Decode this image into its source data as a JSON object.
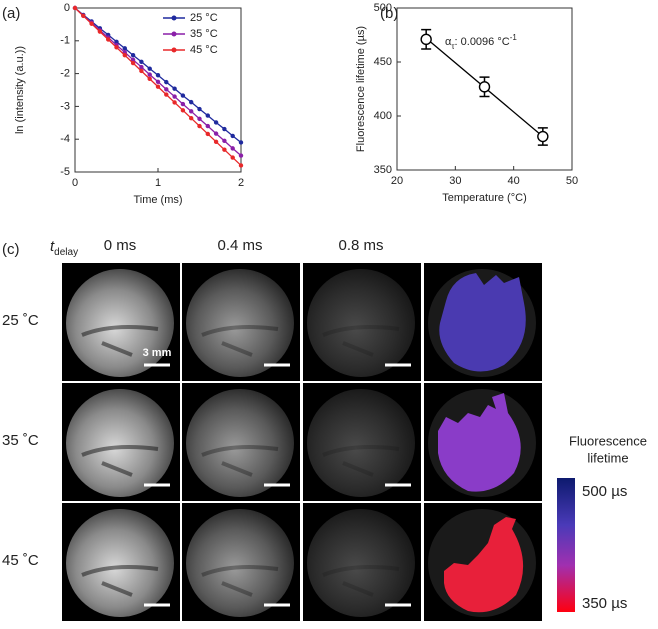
{
  "chart_data": [
    {
      "type": "line",
      "panel_label": "(a)",
      "x_label": "Time (ms)",
      "y_label": "ln (intensity (a.u.))",
      "x": [
        0,
        0.1,
        0.2,
        0.3,
        0.4,
        0.5,
        0.6,
        0.7,
        0.8,
        0.9,
        1,
        1.1,
        1.2,
        1.3,
        1.4,
        1.5,
        1.6,
        1.7,
        1.8,
        1.9,
        2
      ],
      "series": [
        {
          "name": "25 °C",
          "color": "#1f2a9e",
          "values": [
            0,
            -0.21,
            -0.41,
            -0.62,
            -0.82,
            -1.03,
            -1.23,
            -1.44,
            -1.64,
            -1.85,
            -2.05,
            -2.26,
            -2.46,
            -2.67,
            -2.87,
            -3.08,
            -3.28,
            -3.49,
            -3.69,
            -3.9,
            -4.1
          ]
        },
        {
          "name": "35 °C",
          "color": "#8a1fa8",
          "values": [
            0,
            -0.23,
            -0.45,
            -0.68,
            -0.9,
            -1.13,
            -1.35,
            -1.58,
            -1.8,
            -2.03,
            -2.25,
            -2.48,
            -2.7,
            -2.93,
            -3.15,
            -3.38,
            -3.6,
            -3.83,
            -4.05,
            -4.28,
            -4.5
          ]
        },
        {
          "name": "45 °C",
          "color": "#e8282a",
          "values": [
            0,
            -0.24,
            -0.48,
            -0.72,
            -0.96,
            -1.2,
            -1.44,
            -1.68,
            -1.92,
            -2.16,
            -2.4,
            -2.64,
            -2.88,
            -3.12,
            -3.36,
            -3.6,
            -3.84,
            -4.08,
            -4.32,
            -4.56,
            -4.8
          ]
        }
      ],
      "xlim": [
        0,
        2
      ],
      "xticks": [
        0,
        1,
        2
      ],
      "ylim": [
        -5,
        0
      ],
      "yticks": [
        0,
        -1,
        -2,
        -3,
        -4,
        -5
      ],
      "legend": "upper right"
    },
    {
      "type": "scatter",
      "panel_label": "(b)",
      "x_label": "Temperature (°C)",
      "y_label": "Fluorescence lifetime (µs)",
      "x": [
        25,
        35,
        45
      ],
      "values": [
        471,
        427,
        381
      ],
      "errors": [
        9,
        9,
        8
      ],
      "color": "#000000",
      "fit": {
        "x": [
          25,
          45
        ],
        "y": [
          472,
          381
        ]
      },
      "annotation": {
        "symbol": "α",
        "subscript": "τ",
        "text": ": 0.0096  °C",
        "superscript": "-1"
      },
      "xlim": [
        20,
        50
      ],
      "xticks": [
        20,
        30,
        40,
        50
      ],
      "ylim": [
        350,
        500
      ],
      "yticks": [
        350,
        400,
        450,
        500
      ]
    }
  ],
  "panel_c": {
    "panel_label": "(c)",
    "delay_symbol": "t",
    "delay_subscript": "delay",
    "columns": [
      "0 ms",
      "0.4 ms",
      "0.8 ms"
    ],
    "rows": [
      "25 ˚C",
      "35 ˚C",
      "45 ˚C"
    ],
    "scale_bar": "3 mm",
    "colorbar": {
      "title": [
        "Fluorescence",
        "lifetime"
      ],
      "max_label": "500 µs",
      "min_label": "350 µs"
    }
  }
}
